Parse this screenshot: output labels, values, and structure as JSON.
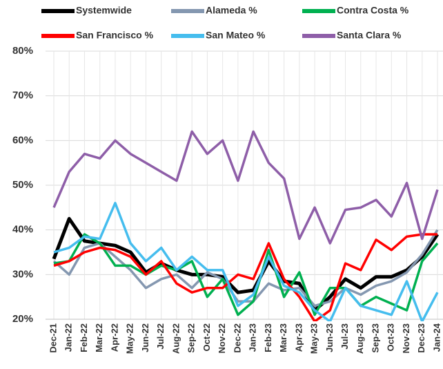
{
  "chart_data": {
    "type": "line",
    "categories": [
      "Dec-21",
      "Jan-22",
      "Feb-22",
      "Mar-22",
      "Apr-22",
      "May-22",
      "Jun-22",
      "Jul-22",
      "Aug-22",
      "Sep-22",
      "Oct-22",
      "Nov-22",
      "Dec-22",
      "Jan-23",
      "Feb-23",
      "Mar-23",
      "Apr-23",
      "May-23",
      "Jun-23",
      "Jul-23",
      "Aug-23",
      "Sep-23",
      "Oct-23",
      "Nov-23",
      "Dec-23",
      "Jan-24"
    ],
    "series": [
      {
        "name": "Systemwide",
        "color": "#000000",
        "values": [
          33.5,
          42.5,
          37.5,
          37,
          36.5,
          35,
          30.5,
          32.5,
          31,
          30,
          30,
          29.5,
          26,
          26.5,
          33,
          28.5,
          28,
          22,
          25,
          29,
          27,
          29.5,
          29.5,
          31,
          34,
          39
        ]
      },
      {
        "name": "Alameda %",
        "color": "#8497b0",
        "values": [
          33,
          30,
          36,
          37,
          34,
          31,
          27,
          29,
          30,
          27,
          30.5,
          29,
          24,
          24,
          28,
          26.5,
          27,
          23,
          24,
          27,
          25.5,
          27.5,
          28.5,
          30.5,
          34.5,
          40
        ]
      },
      {
        "name": "Contra Costa %",
        "color": "#00b050",
        "values": [
          32.5,
          33,
          39,
          37,
          32,
          32,
          30,
          32,
          31,
          33,
          25,
          29,
          21,
          24,
          35.5,
          25,
          30.5,
          21,
          27,
          27,
          23,
          25,
          23.5,
          22,
          33,
          37
        ]
      },
      {
        "name": "San Francisco %",
        "color": "#ff0000",
        "values": [
          32,
          33,
          35,
          36,
          35.5,
          34,
          30,
          33,
          28,
          26,
          27,
          27,
          30,
          29,
          37,
          29,
          25,
          19.5,
          22,
          32.5,
          31,
          37.8,
          35.5,
          38.5,
          39,
          39
        ]
      },
      {
        "name": "San Mateo %",
        "color": "#45bdee",
        "values": [
          35,
          36,
          38.5,
          38,
          46,
          37,
          33,
          36,
          31,
          34,
          31,
          31,
          23,
          25.5,
          34,
          27.5,
          26,
          22,
          19.5,
          27,
          23,
          22,
          21,
          28.5,
          19.5,
          26
        ]
      },
      {
        "name": "Santa Clara %",
        "color": "#8e5ea8",
        "values": [
          45,
          53,
          57,
          56,
          60,
          57,
          55,
          53,
          51,
          62,
          57,
          60,
          51,
          62,
          55,
          51.5,
          38,
          45,
          37,
          44.5,
          45,
          46.7,
          43,
          50.5,
          38,
          49
        ]
      }
    ],
    "ylim": [
      20,
      80
    ],
    "yticks": [
      {
        "value": 20,
        "label": "20%"
      },
      {
        "value": 30,
        "label": "30%"
      },
      {
        "value": 40,
        "label": "40%"
      },
      {
        "value": 50,
        "label": "50%"
      },
      {
        "value": 60,
        "label": "60%"
      },
      {
        "value": 70,
        "label": "70%"
      },
      {
        "value": 80,
        "label": "80%"
      }
    ],
    "grid": true
  }
}
